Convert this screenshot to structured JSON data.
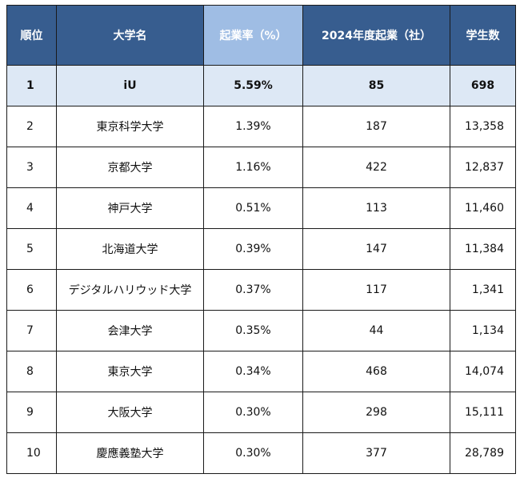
{
  "table": {
    "headers": [
      "順位",
      "大学名",
      "起業率（%）",
      "2024年度起業（社）",
      "学生数"
    ],
    "rows": [
      {
        "rank": "1",
        "name": "iU",
        "rate": "5.59%",
        "startups": "85",
        "students": "698"
      },
      {
        "rank": "2",
        "name": "東京科学大学",
        "rate": "1.39%",
        "startups": "187",
        "students": "13,358"
      },
      {
        "rank": "3",
        "name": "京都大学",
        "rate": "1.16%",
        "startups": "422",
        "students": "12,837"
      },
      {
        "rank": "4",
        "name": "神戸大学",
        "rate": "0.51%",
        "startups": "113",
        "students": "11,460"
      },
      {
        "rank": "5",
        "name": "北海道大学",
        "rate": "0.39%",
        "startups": "147",
        "students": "11,384"
      },
      {
        "rank": "6",
        "name": "デジタルハリウッド大学",
        "rate": "0.37%",
        "startups": "117",
        "students": "1,341"
      },
      {
        "rank": "7",
        "name": "会津大学",
        "rate": "0.35%",
        "startups": "44",
        "students": "1,134"
      },
      {
        "rank": "8",
        "name": "東京大学",
        "rate": "0.34%",
        "startups": "468",
        "students": "14,074"
      },
      {
        "rank": "9",
        "name": "大阪大学",
        "rate": "0.30%",
        "startups": "298",
        "students": "15,111"
      },
      {
        "rank": "10",
        "name": "慶應義塾大学",
        "rate": "0.30%",
        "startups": "377",
        "students": "28,789"
      }
    ]
  }
}
